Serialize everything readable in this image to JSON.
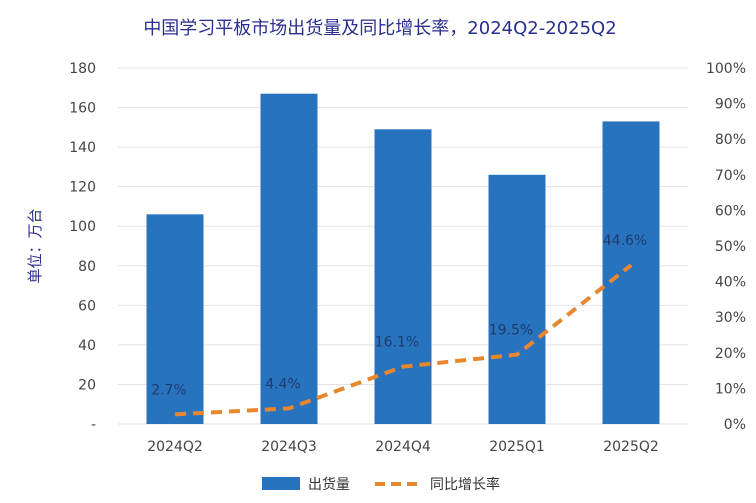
{
  "chart_data": {
    "type": "bar",
    "title": "中国学习平板市场出货量及同比增长率，2024Q2-2025Q2",
    "ylabel": "单位：万台",
    "xlabel": "",
    "categories": [
      "2024Q2",
      "2024Q3",
      "2024Q4",
      "2025Q1",
      "2025Q2"
    ],
    "series": [
      {
        "name": "出货量",
        "type": "bar",
        "axis": "left",
        "values": [
          106,
          167,
          149,
          126,
          153
        ],
        "color": "#2873be"
      },
      {
        "name": "同比增长率",
        "type": "line",
        "axis": "right",
        "dashed": true,
        "values": [
          2.7,
          4.4,
          16.1,
          19.5,
          44.6
        ],
        "labels": [
          "2.7%",
          "4.4%",
          "16.1%",
          "19.5%",
          "44.6%"
        ],
        "color": "#e8872e"
      }
    ],
    "y_left": {
      "ylim": [
        0,
        180
      ],
      "ticks": [
        0,
        20,
        40,
        60,
        80,
        100,
        120,
        140,
        160,
        180
      ],
      "tick_labels": [
        "-",
        "20",
        "40",
        "60",
        "80",
        "100",
        "120",
        "140",
        "160",
        "180"
      ]
    },
    "y_right": {
      "ylim": [
        0,
        100
      ],
      "ticks": [
        0,
        10,
        20,
        30,
        40,
        50,
        60,
        70,
        80,
        90,
        100
      ],
      "tick_labels": [
        "0%",
        "10%",
        "20%",
        "30%",
        "40%",
        "50%",
        "60%",
        "70%",
        "80%",
        "90%",
        "100%"
      ]
    },
    "grid": true,
    "legend_position": "bottom"
  }
}
